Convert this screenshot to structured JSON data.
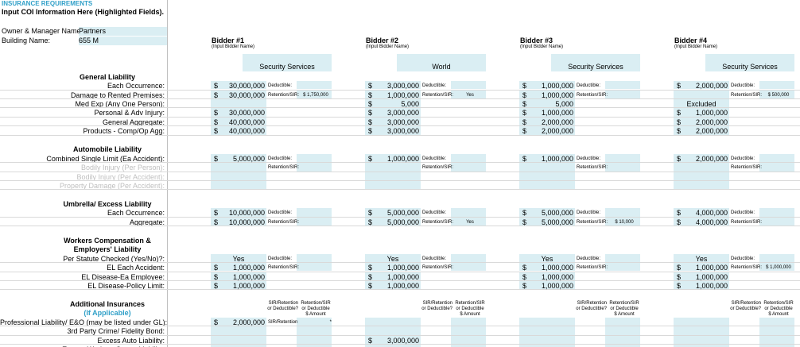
{
  "header": {
    "title": "INSURANCE REQUIREMENTS",
    "subtitle": "Input COI Information Here (Highlighted Fields)."
  },
  "owner": {
    "label": "Owner & Manager Name:",
    "value": "Partners"
  },
  "building": {
    "label": "Building Name:",
    "value": "655 M"
  },
  "bidders": [
    {
      "title": "Bidder #1",
      "hint": "(Input Bidder Name)",
      "name": "Security Services"
    },
    {
      "title": "Bidder #2",
      "hint": "(Input Bidder Name)",
      "name": "World"
    },
    {
      "title": "Bidder #3",
      "hint": "(Input Bidder Name)",
      "name": "Security Services"
    },
    {
      "title": "Bidder #4",
      "hint": "(Input Bidder Name)",
      "name": "Security Services"
    }
  ],
  "sections": [
    {
      "title": [
        "General Liability"
      ],
      "rows": [
        {
          "label": "Each Occurrence:",
          "cells": [
            {
              "currency": "$",
              "amount": "30,000,000",
              "side_label": "Deductible:"
            },
            {
              "currency": "$",
              "amount": "3,000,000",
              "side_label": "Deductible:"
            },
            {
              "currency": "$",
              "amount": "1,000,000",
              "side_label": "Deductible:"
            },
            {
              "currency": "$",
              "amount": "2,000,000",
              "side_label": "Deductible:"
            }
          ]
        },
        {
          "label": "Damage to Rented Premises:",
          "cells": [
            {
              "currency": "$",
              "amount": "30,000,000",
              "side_label": "Retention/SIR:",
              "side_value": "$ 1,750,000"
            },
            {
              "currency": "$",
              "amount": "1,000,000",
              "side_label": "Retention/SIR:",
              "side_value": "Yes"
            },
            {
              "currency": "$",
              "amount": "1,000,000",
              "side_label": "Retention/SIR:"
            },
            {
              "side_label": "Retention/SIR:",
              "side_value": "$ 500,000"
            }
          ]
        },
        {
          "label": "Med Exp (Any One Person):",
          "cells": [
            null,
            {
              "currency": "$",
              "amount": "5,000"
            },
            {
              "currency": "$",
              "amount": "5,000"
            },
            {
              "text": "Excluded"
            }
          ]
        },
        {
          "label": "Personal & Adv Injury:",
          "cells": [
            {
              "currency": "$",
              "amount": "30,000,000"
            },
            {
              "currency": "$",
              "amount": "3,000,000"
            },
            {
              "currency": "$",
              "amount": "1,000,000"
            },
            {
              "currency": "$",
              "amount": "1,000,000"
            }
          ]
        },
        {
          "label": "General Aggregate:",
          "cells": [
            {
              "currency": "$",
              "amount": "40,000,000"
            },
            {
              "currency": "$",
              "amount": "3,000,000"
            },
            {
              "currency": "$",
              "amount": "2,000,000"
            },
            {
              "currency": "$",
              "amount": "2,000,000"
            }
          ]
        },
        {
          "label": "Products - Comp/Op Agg:",
          "cells": [
            {
              "currency": "$",
              "amount": "40,000,000"
            },
            {
              "currency": "$",
              "amount": "3,000,000"
            },
            {
              "currency": "$",
              "amount": "2,000,000"
            },
            {
              "currency": "$",
              "amount": "2,000,000"
            }
          ]
        }
      ]
    },
    {
      "title": [
        "Automobile Liability"
      ],
      "rows": [
        {
          "label": "Combined Single Limit (Ea Accident):",
          "cells": [
            {
              "currency": "$",
              "amount": "5,000,000",
              "side_label": "Deductible:"
            },
            {
              "currency": "$",
              "amount": "1,000,000",
              "side_label": "Deductible:"
            },
            {
              "currency": "$",
              "amount": "1,000,000",
              "side_label": "Deductible:"
            },
            {
              "currency": "$",
              "amount": "2,000,000",
              "side_label": "Deductible:"
            }
          ]
        },
        {
          "label": "Bodily Injury (Per Person):",
          "muted": true,
          "cells": [
            {
              "side_label": "Retention/SIR:"
            },
            {
              "side_label": "Retention/SIR:"
            },
            {
              "side_label": "Retention/SIR:"
            },
            {
              "side_label": "Retention/SIR:"
            }
          ]
        },
        {
          "label": "Bodily Injury (Per Accident):",
          "muted": true,
          "cells": [
            null,
            null,
            null,
            null
          ]
        },
        {
          "label": "Property Damage (Per Accident):",
          "muted": true,
          "cells": [
            null,
            null,
            null,
            null
          ]
        }
      ]
    },
    {
      "title": [
        "Umbrella/ Excess Liability"
      ],
      "rows": [
        {
          "label": "Each Occurrence:",
          "cells": [
            {
              "currency": "$",
              "amount": "10,000,000",
              "side_label": "Deductible:"
            },
            {
              "currency": "$",
              "amount": "5,000,000",
              "side_label": "Deductible:"
            },
            {
              "currency": "$",
              "amount": "5,000,000",
              "side_label": "Deductible:"
            },
            {
              "currency": "$",
              "amount": "4,000,000",
              "side_label": "Deductible:"
            }
          ]
        },
        {
          "label": "Aggregate:",
          "cells": [
            {
              "currency": "$",
              "amount": "10,000,000",
              "side_label": "Retention/SIR:"
            },
            {
              "currency": "$",
              "amount": "5,000,000",
              "side_label": "Retention/SIR:",
              "side_value": "Yes"
            },
            {
              "currency": "$",
              "amount": "5,000,000",
              "side_label": "Retention/SIR:",
              "side_value": "$ 10,000"
            },
            {
              "currency": "$",
              "amount": "4,000,000",
              "side_label": "Retention/SIR:"
            }
          ]
        }
      ]
    },
    {
      "title": [
        "Workers Compensation &",
        "Employers' Liability"
      ],
      "rows": [
        {
          "label": "Per Statute Checked (Yes/No)?:",
          "cells": [
            {
              "text": "Yes",
              "side_label": "Deductible:"
            },
            {
              "text": "Yes",
              "side_label": "Deductible:"
            },
            {
              "text": "Yes",
              "side_label": "Deductible:"
            },
            {
              "text": "Yes",
              "side_label": "Deductible:"
            }
          ]
        },
        {
          "label": "EL Each Accident:",
          "cells": [
            {
              "currency": "$",
              "amount": "1,000,000",
              "side_label": "Retention/SIR:"
            },
            {
              "currency": "$",
              "amount": "1,000,000",
              "side_label": "Retention/SIR:"
            },
            {
              "currency": "$",
              "amount": "1,000,000",
              "side_label": "Retention/SIR:"
            },
            {
              "currency": "$",
              "amount": "1,000,000",
              "side_label": "Retention/SIR:",
              "side_value": "$ 1,000,000"
            }
          ]
        },
        {
          "label": "EL Disease-Ea Employee:",
          "cells": [
            {
              "currency": "$",
              "amount": "1,000,000"
            },
            {
              "currency": "$",
              "amount": "1,000,000"
            },
            {
              "currency": "$",
              "amount": "1,000,000"
            },
            {
              "currency": "$",
              "amount": "1,000,000"
            }
          ]
        },
        {
          "label": "EL Disease-Policy Limit:",
          "cells": [
            {
              "currency": "$",
              "amount": "1,000,000"
            },
            {
              "currency": "$",
              "amount": "1,000,000"
            },
            {
              "currency": "$",
              "amount": "1,000,000"
            },
            {
              "currency": "$",
              "amount": "1,000,000"
            }
          ]
        }
      ]
    },
    {
      "title": [
        "Additional Insurances"
      ],
      "note": "(If Applicable)",
      "column_headers": [
        "SIR/Retention or Deductible?",
        "Retention/SIR or Deductible $ Amount"
      ],
      "rows": [
        {
          "label": "Professional Liability/ E&O (may be listed under GL):",
          "cells": [
            {
              "currency": "$",
              "amount": "2,000,000",
              "side_label": "SIR/Retention",
              "side_value": "*"
            },
            null,
            null,
            null
          ]
        },
        {
          "label": "3rd Party Crime/ Fidelity Bond:",
          "cells": [
            null,
            null,
            null,
            null
          ]
        },
        {
          "label": "Excess Auto Liability:",
          "cells": [
            null,
            {
              "currency": "$",
              "amount": "3,000,000"
            },
            null,
            null
          ]
        },
        {
          "label": "Excess Workers Comp. Liability:",
          "cells": [
            null,
            null,
            null,
            null
          ]
        }
      ]
    }
  ]
}
